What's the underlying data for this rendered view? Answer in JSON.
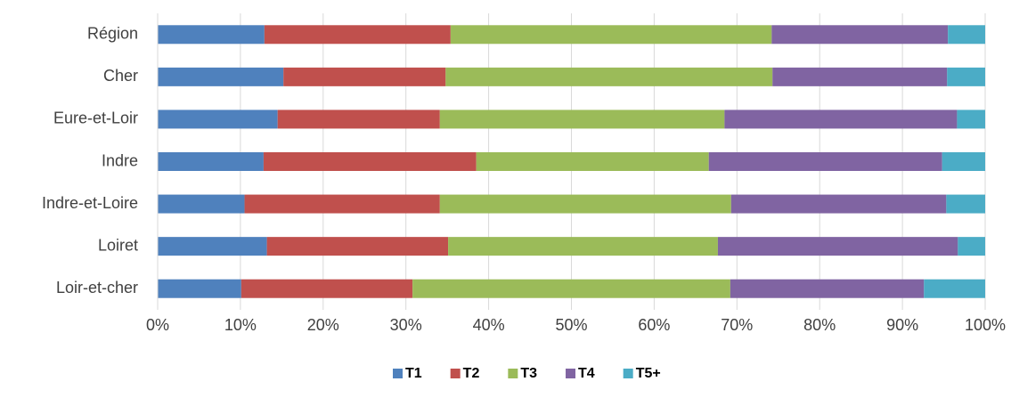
{
  "chart_data": {
    "type": "stacked_bar_horizontal",
    "categories": [
      "Région",
      "Cher",
      "Eure-et-Loir",
      "Indre",
      "Indre-et-Loire",
      "Loiret",
      "Loir-et-cher"
    ],
    "series": [
      {
        "name": "T1",
        "color": "#4f81bd",
        "values": [
          12.9,
          15.2,
          14.5,
          12.8,
          10.5,
          13.2,
          10.1
        ]
      },
      {
        "name": "T2",
        "color": "#c0504d",
        "values": [
          22.5,
          19.6,
          19.6,
          25.7,
          23.6,
          21.9,
          20.7
        ]
      },
      {
        "name": "T3",
        "color": "#9bbb59",
        "values": [
          38.8,
          39.5,
          34.4,
          28.1,
          35.2,
          32.6,
          38.4
        ]
      },
      {
        "name": "T4",
        "color": "#8064a2",
        "values": [
          21.3,
          21.1,
          28.1,
          28.2,
          26.0,
          29.0,
          23.4
        ]
      },
      {
        "name": "T5+",
        "color": "#4bacc6",
        "values": [
          4.5,
          4.6,
          3.4,
          5.2,
          4.7,
          3.3,
          7.4
        ]
      }
    ],
    "xlim": [
      0,
      100
    ],
    "xticks": [
      {
        "value": 0,
        "label": "0%"
      },
      {
        "value": 10,
        "label": "10%"
      },
      {
        "value": 20,
        "label": "20%"
      },
      {
        "value": 30,
        "label": "30%"
      },
      {
        "value": 40,
        "label": "40%"
      },
      {
        "value": 50,
        "label": "50%"
      },
      {
        "value": 60,
        "label": "60%"
      },
      {
        "value": 70,
        "label": "70%"
      },
      {
        "value": 80,
        "label": "80%"
      },
      {
        "value": 90,
        "label": "90%"
      },
      {
        "value": 100,
        "label": "100%"
      }
    ],
    "grid": true,
    "legend": "bottom"
  }
}
